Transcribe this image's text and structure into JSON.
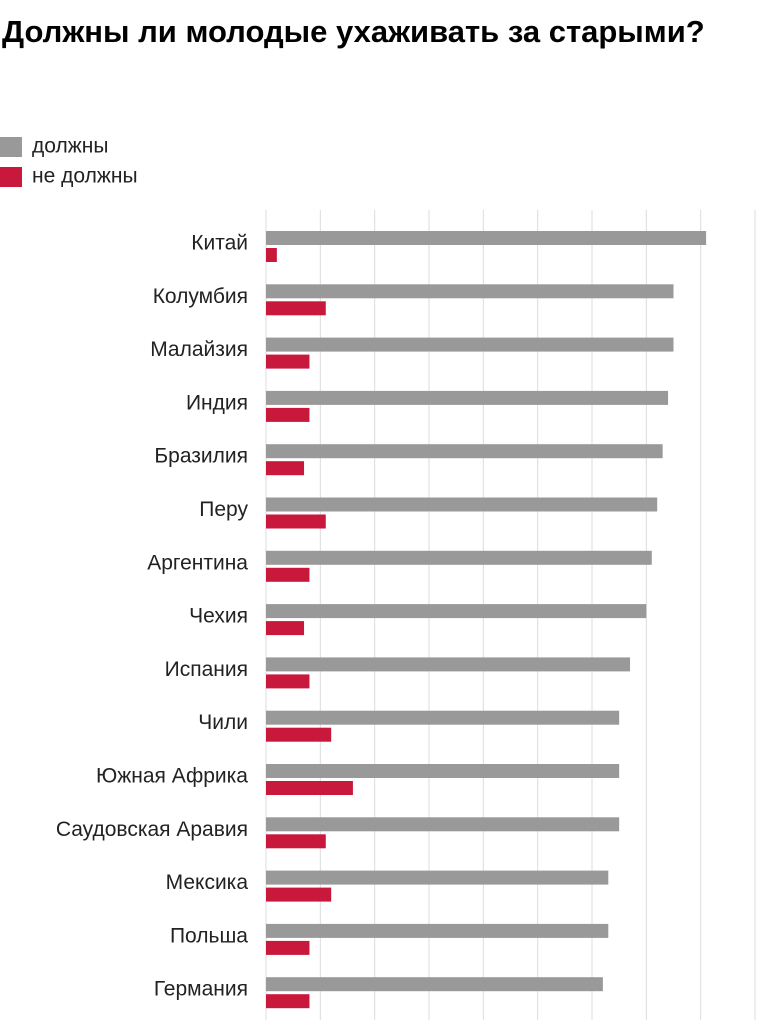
{
  "chart_data": {
    "type": "bar",
    "orientation": "horizontal",
    "title": "Должны ли молодые ухаживать за старыми?",
    "categories": [
      "Китай",
      "Колумбия",
      "Малайзия",
      "Индия",
      "Бразилия",
      "Перу",
      "Аргентина",
      "Чехия",
      "Испания",
      "Чили",
      "Южная Африка",
      "Саудовская Аравия",
      "Мексика",
      "Польша",
      "Германия"
    ],
    "series": [
      {
        "name": "должны",
        "color": "#999999",
        "values": [
          81,
          75,
          75,
          74,
          73,
          72,
          71,
          70,
          67,
          65,
          65,
          65,
          63,
          63,
          62
        ]
      },
      {
        "name": "не должны",
        "color": "#c8193c",
        "values": [
          2,
          11,
          8,
          8,
          7,
          11,
          8,
          7,
          8,
          12,
          16,
          11,
          12,
          8,
          8
        ]
      }
    ],
    "xlim": [
      0,
      90
    ],
    "xticks": [
      0,
      10,
      20,
      30,
      40,
      50,
      60,
      70,
      80,
      90
    ],
    "grid": true,
    "legend": "top-left"
  }
}
